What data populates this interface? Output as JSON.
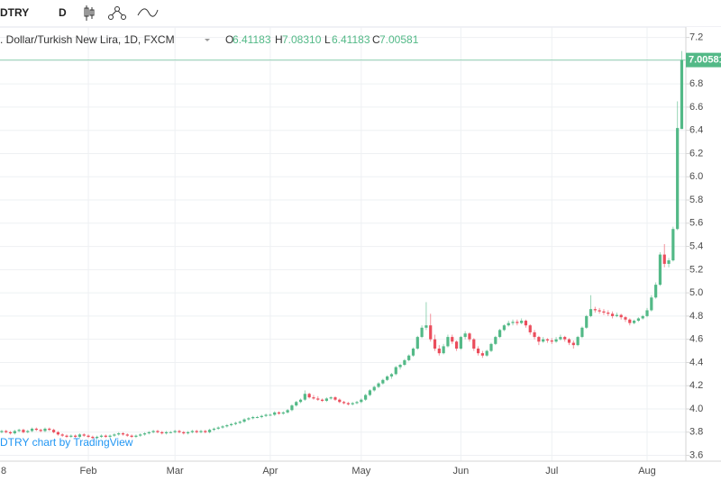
{
  "toolbar": {
    "symbol": "DTRY",
    "interval": "D"
  },
  "chart_data": {
    "type": "candlestick",
    "title": ". Dollar/Turkish New Lira, 1D, FXCM",
    "legend": {
      "labels": [
        "O",
        "H",
        "L",
        "C"
      ],
      "value_labels": [
        "6.41183",
        "7.08310",
        "6.41183",
        "7.00581"
      ]
    },
    "watermark": "DTRY chart by TradingView",
    "up_color": "#53b987",
    "down_color": "#eb4d5c",
    "grid": true,
    "ylim": [
      3.55,
      7.29
    ],
    "yticks": [
      3.6,
      3.8,
      {
        "value": 4,
        "label": "4.0"
      },
      4.2,
      4.4,
      4.6,
      4.8,
      {
        "value": 5,
        "label": "5.0"
      },
      5.2,
      5.4,
      5.6,
      5.8,
      {
        "value": 6,
        "label": "6.0"
      },
      6.2,
      6.4,
      6.6,
      6.8,
      {
        "value": 7,
        "label": "7.0"
      },
      7.2
    ],
    "categories": [
      "8",
      null,
      null,
      null,
      null,
      null,
      null,
      null,
      null,
      null,
      null,
      null,
      null,
      null,
      null,
      null,
      null,
      null,
      null,
      null,
      null,
      null,
      null,
      "Feb",
      null,
      null,
      null,
      null,
      null,
      null,
      null,
      null,
      null,
      null,
      null,
      null,
      null,
      null,
      null,
      null,
      null,
      null,
      null,
      "Mar",
      null,
      null,
      null,
      null,
      null,
      null,
      null,
      null,
      null,
      null,
      null,
      null,
      null,
      null,
      null,
      null,
      null,
      null,
      null,
      null,
      null,
      "Apr",
      null,
      null,
      null,
      null,
      null,
      null,
      null,
      null,
      null,
      null,
      null,
      null,
      null,
      null,
      null,
      null,
      null,
      null,
      null,
      null,
      "May",
      null,
      null,
      null,
      null,
      null,
      null,
      null,
      null,
      null,
      null,
      null,
      null,
      null,
      null,
      null,
      null,
      null,
      null,
      null,
      null,
      null,
      null,
      "Jun",
      null,
      null,
      null,
      null,
      null,
      null,
      null,
      null,
      null,
      null,
      null,
      null,
      null,
      null,
      null,
      null,
      null,
      null,
      null,
      null,
      "Jul",
      null,
      null,
      null,
      null,
      null,
      null,
      null,
      null,
      null,
      null,
      null,
      null,
      null,
      null,
      null,
      null,
      null,
      null,
      null,
      null,
      null,
      "Aug",
      null,
      null,
      null,
      null,
      null,
      null,
      null,
      null
    ],
    "ohlc": [
      [
        3.77,
        3.79,
        3.76,
        3.78
      ],
      [
        3.78,
        3.8,
        3.77,
        3.79
      ],
      [
        3.79,
        3.81,
        3.78,
        3.8
      ],
      [
        3.8,
        3.82,
        3.79,
        3.81
      ],
      [
        3.81,
        3.82,
        3.79,
        3.8
      ],
      [
        3.8,
        3.81,
        3.78,
        3.79
      ],
      [
        3.79,
        3.82,
        3.78,
        3.81
      ],
      [
        3.81,
        3.83,
        3.8,
        3.82
      ],
      [
        3.82,
        3.83,
        3.79,
        3.8
      ],
      [
        3.8,
        3.82,
        3.79,
        3.81
      ],
      [
        3.81,
        3.84,
        3.8,
        3.83
      ],
      [
        3.83,
        3.84,
        3.81,
        3.82
      ],
      [
        3.82,
        3.83,
        3.8,
        3.81
      ],
      [
        3.81,
        3.84,
        3.8,
        3.83
      ],
      [
        3.83,
        3.84,
        3.81,
        3.82
      ],
      [
        3.82,
        3.83,
        3.79,
        3.8
      ],
      [
        3.8,
        3.81,
        3.77,
        3.78
      ],
      [
        3.78,
        3.79,
        3.76,
        3.77
      ],
      [
        3.77,
        3.78,
        3.75,
        3.76
      ],
      [
        3.76,
        3.78,
        3.75,
        3.77
      ],
      [
        3.77,
        3.78,
        3.75,
        3.76
      ],
      [
        3.76,
        3.79,
        3.75,
        3.78
      ],
      [
        3.78,
        3.79,
        3.76,
        3.77
      ],
      [
        3.77,
        3.78,
        3.75,
        3.76
      ],
      [
        3.76,
        3.77,
        3.74,
        3.75
      ],
      [
        3.75,
        3.77,
        3.74,
        3.76
      ],
      [
        3.76,
        3.78,
        3.75,
        3.77
      ],
      [
        3.77,
        3.78,
        3.75,
        3.76
      ],
      [
        3.76,
        3.78,
        3.75,
        3.77
      ],
      [
        3.77,
        3.79,
        3.76,
        3.78
      ],
      [
        3.78,
        3.8,
        3.77,
        3.79
      ],
      [
        3.79,
        3.8,
        3.77,
        3.78
      ],
      [
        3.78,
        3.79,
        3.76,
        3.77
      ],
      [
        3.77,
        3.78,
        3.75,
        3.76
      ],
      [
        3.76,
        3.78,
        3.75,
        3.77
      ],
      [
        3.77,
        3.79,
        3.76,
        3.78
      ],
      [
        3.78,
        3.8,
        3.77,
        3.79
      ],
      [
        3.79,
        3.81,
        3.78,
        3.8
      ],
      [
        3.8,
        3.82,
        3.79,
        3.81
      ],
      [
        3.81,
        3.82,
        3.79,
        3.8
      ],
      [
        3.8,
        3.81,
        3.78,
        3.79
      ],
      [
        3.79,
        3.81,
        3.78,
        3.8
      ],
      [
        3.8,
        3.81,
        3.79,
        3.8
      ],
      [
        3.8,
        3.82,
        3.79,
        3.81
      ],
      [
        3.81,
        3.82,
        3.79,
        3.8
      ],
      [
        3.8,
        3.81,
        3.78,
        3.79
      ],
      [
        3.79,
        3.81,
        3.78,
        3.8
      ],
      [
        3.8,
        3.82,
        3.79,
        3.81
      ],
      [
        3.81,
        3.82,
        3.79,
        3.8
      ],
      [
        3.8,
        3.82,
        3.79,
        3.81
      ],
      [
        3.81,
        3.82,
        3.79,
        3.8
      ],
      [
        3.8,
        3.83,
        3.79,
        3.82
      ],
      [
        3.82,
        3.84,
        3.81,
        3.83
      ],
      [
        3.83,
        3.85,
        3.82,
        3.84
      ],
      [
        3.84,
        3.86,
        3.83,
        3.85
      ],
      [
        3.85,
        3.87,
        3.84,
        3.86
      ],
      [
        3.86,
        3.88,
        3.85,
        3.87
      ],
      [
        3.87,
        3.89,
        3.86,
        3.88
      ],
      [
        3.88,
        3.9,
        3.87,
        3.89
      ],
      [
        3.89,
        3.92,
        3.88,
        3.91
      ],
      [
        3.91,
        3.93,
        3.9,
        3.92
      ],
      [
        3.92,
        3.94,
        3.91,
        3.93
      ],
      [
        3.93,
        3.94,
        3.92,
        3.93
      ],
      [
        3.93,
        3.95,
        3.92,
        3.94
      ],
      [
        3.94,
        3.96,
        3.93,
        3.95
      ],
      [
        3.95,
        3.96,
        3.94,
        3.95
      ],
      [
        3.95,
        3.98,
        3.94,
        3.97
      ],
      [
        3.97,
        3.98,
        3.95,
        3.96
      ],
      [
        3.96,
        3.98,
        3.95,
        3.97
      ],
      [
        3.97,
        4.0,
        3.96,
        3.99
      ],
      [
        3.99,
        4.04,
        3.98,
        4.03
      ],
      [
        4.03,
        4.07,
        4.02,
        4.06
      ],
      [
        4.06,
        4.09,
        4.05,
        4.08
      ],
      [
        4.08,
        4.16,
        4.07,
        4.13
      ],
      [
        4.13,
        4.14,
        4.09,
        4.1
      ],
      [
        4.1,
        4.12,
        4.08,
        4.09
      ],
      [
        4.09,
        4.11,
        4.07,
        4.08
      ],
      [
        4.08,
        4.09,
        4.06,
        4.07
      ],
      [
        4.07,
        4.1,
        4.06,
        4.09
      ],
      [
        4.09,
        4.11,
        4.08,
        4.1
      ],
      [
        4.1,
        4.11,
        4.07,
        4.08
      ],
      [
        4.08,
        4.09,
        4.05,
        4.06
      ],
      [
        4.06,
        4.07,
        4.04,
        4.05
      ],
      [
        4.05,
        4.06,
        4.03,
        4.04
      ],
      [
        4.04,
        4.06,
        4.03,
        4.05
      ],
      [
        4.05,
        4.07,
        4.04,
        4.06
      ],
      [
        4.06,
        4.09,
        4.05,
        4.08
      ],
      [
        4.08,
        4.13,
        4.07,
        4.12
      ],
      [
        4.12,
        4.17,
        4.11,
        4.16
      ],
      [
        4.16,
        4.2,
        4.15,
        4.19
      ],
      [
        4.19,
        4.23,
        4.18,
        4.22
      ],
      [
        4.22,
        4.26,
        4.21,
        4.25
      ],
      [
        4.25,
        4.29,
        4.24,
        4.28
      ],
      [
        4.28,
        4.31,
        4.26,
        4.3
      ],
      [
        4.3,
        4.37,
        4.29,
        4.36
      ],
      [
        4.36,
        4.39,
        4.34,
        4.38
      ],
      [
        4.38,
        4.43,
        4.37,
        4.42
      ],
      [
        4.42,
        4.47,
        4.41,
        4.46
      ],
      [
        4.46,
        4.53,
        4.45,
        4.52
      ],
      [
        4.52,
        4.63,
        4.51,
        4.62
      ],
      [
        4.62,
        4.72,
        4.61,
        4.7
      ],
      [
        4.7,
        4.92,
        4.68,
        4.72
      ],
      [
        4.72,
        4.82,
        4.58,
        4.6
      ],
      [
        4.6,
        4.64,
        4.5,
        4.52
      ],
      [
        4.52,
        4.55,
        4.46,
        4.48
      ],
      [
        4.48,
        4.56,
        4.47,
        4.54
      ],
      [
        4.54,
        4.64,
        4.53,
        4.62
      ],
      [
        4.62,
        4.64,
        4.56,
        4.58
      ],
      [
        4.58,
        4.59,
        4.5,
        4.52
      ],
      [
        4.52,
        4.63,
        4.51,
        4.62
      ],
      [
        4.62,
        4.67,
        4.6,
        4.65
      ],
      [
        4.65,
        4.66,
        4.58,
        4.6
      ],
      [
        4.6,
        4.61,
        4.5,
        4.52
      ],
      [
        4.52,
        4.54,
        4.46,
        4.48
      ],
      [
        4.48,
        4.5,
        4.44,
        4.46
      ],
      [
        4.46,
        4.51,
        4.45,
        4.5
      ],
      [
        4.5,
        4.57,
        4.49,
        4.56
      ],
      [
        4.56,
        4.63,
        4.55,
        4.62
      ],
      [
        4.62,
        4.69,
        4.61,
        4.68
      ],
      [
        4.68,
        4.73,
        4.67,
        4.72
      ],
      [
        4.72,
        4.76,
        4.71,
        4.74
      ],
      [
        4.74,
        4.77,
        4.72,
        4.75
      ],
      [
        4.75,
        4.77,
        4.72,
        4.74
      ],
      [
        4.74,
        4.78,
        4.73,
        4.76
      ],
      [
        4.76,
        4.77,
        4.7,
        4.72
      ],
      [
        4.72,
        4.73,
        4.64,
        4.66
      ],
      [
        4.66,
        4.68,
        4.6,
        4.62
      ],
      [
        4.62,
        4.63,
        4.55,
        4.58
      ],
      [
        4.58,
        4.62,
        4.57,
        4.6
      ],
      [
        4.6,
        4.61,
        4.57,
        4.59
      ],
      [
        4.59,
        4.61,
        4.56,
        4.58
      ],
      [
        4.58,
        4.62,
        4.57,
        4.6
      ],
      [
        4.6,
        4.64,
        4.59,
        4.62
      ],
      [
        4.62,
        4.63,
        4.58,
        4.6
      ],
      [
        4.6,
        4.61,
        4.55,
        4.57
      ],
      [
        4.57,
        4.59,
        4.52,
        4.55
      ],
      [
        4.55,
        4.63,
        4.54,
        4.62
      ],
      [
        4.62,
        4.71,
        4.61,
        4.7
      ],
      [
        4.7,
        4.81,
        4.69,
        4.8
      ],
      [
        4.8,
        4.98,
        4.79,
        4.86
      ],
      [
        4.86,
        4.88,
        4.83,
        4.85
      ],
      [
        4.85,
        4.87,
        4.82,
        4.84
      ],
      [
        4.84,
        4.86,
        4.81,
        4.83
      ],
      [
        4.83,
        4.85,
        4.8,
        4.82
      ],
      [
        4.82,
        4.84,
        4.78,
        4.8
      ],
      [
        4.8,
        4.83,
        4.79,
        4.81
      ],
      [
        4.81,
        4.82,
        4.77,
        4.79
      ],
      [
        4.79,
        4.8,
        4.75,
        4.77
      ],
      [
        4.77,
        4.78,
        4.72,
        4.74
      ],
      [
        4.74,
        4.77,
        4.73,
        4.76
      ],
      [
        4.76,
        4.79,
        4.75,
        4.78
      ],
      [
        4.78,
        4.81,
        4.77,
        4.8
      ],
      [
        4.8,
        4.87,
        4.79,
        4.85
      ],
      [
        4.85,
        4.98,
        4.84,
        4.96
      ],
      [
        4.96,
        5.09,
        4.95,
        5.07
      ],
      [
        5.07,
        5.35,
        5.06,
        5.33
      ],
      [
        5.33,
        5.42,
        5.22,
        5.25
      ],
      [
        5.25,
        5.3,
        5.22,
        5.28
      ],
      [
        5.28,
        5.57,
        5.27,
        5.55
      ],
      [
        5.55,
        6.65,
        5.54,
        6.42
      ],
      [
        6.41183,
        7.0831,
        6.41183,
        7.00581
      ]
    ]
  }
}
